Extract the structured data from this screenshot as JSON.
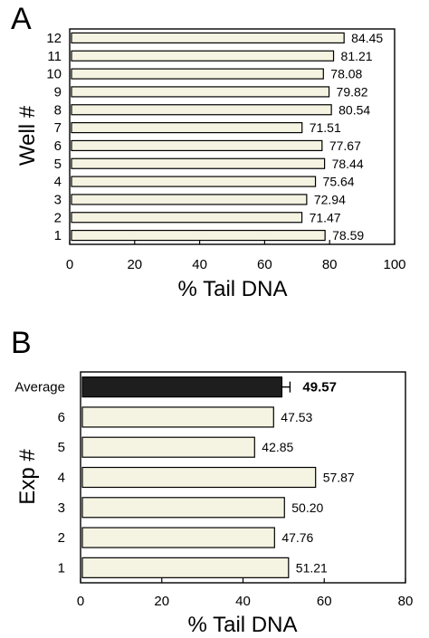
{
  "colors": {
    "bar_fill": "#f5f3e1",
    "highlight_fill": "#1e1e1e",
    "stroke": "#000000"
  },
  "chart_data": [
    {
      "type": "bar",
      "orientation": "horizontal",
      "panel": "A",
      "categories": [
        "1",
        "2",
        "3",
        "4",
        "5",
        "6",
        "7",
        "8",
        "9",
        "10",
        "11",
        "12"
      ],
      "values": [
        78.59,
        71.47,
        72.94,
        75.64,
        78.44,
        77.67,
        71.51,
        80.54,
        79.82,
        78.08,
        81.21,
        84.45
      ],
      "value_labels": [
        "78.59",
        "71.47",
        "72.94",
        "75.64",
        "78.44",
        "77.67",
        "71.51",
        "80.54",
        "79.82",
        "78.08",
        "81.21",
        "84.45"
      ],
      "xlabel": "% Tail DNA",
      "ylabel": "Well #",
      "xlim": [
        0,
        100
      ],
      "xticks": [
        0,
        20,
        40,
        60,
        80,
        100
      ],
      "grid": false
    },
    {
      "type": "bar",
      "orientation": "horizontal",
      "panel": "B",
      "categories": [
        "1",
        "2",
        "3",
        "4",
        "5",
        "6",
        "Average"
      ],
      "values": [
        51.21,
        47.76,
        50.2,
        57.87,
        42.85,
        47.53,
        49.57
      ],
      "value_labels": [
        "51.21",
        "47.76",
        "50.20",
        "57.87",
        "42.85",
        "47.53",
        "49.57"
      ],
      "highlight": "Average",
      "error_bar": {
        "category": "Average",
        "plus": 2.0
      },
      "xlabel": "% Tail DNA",
      "ylabel": "Exp #",
      "xlim": [
        0,
        80
      ],
      "xticks": [
        0,
        20,
        40,
        60,
        80
      ],
      "grid": false
    }
  ]
}
